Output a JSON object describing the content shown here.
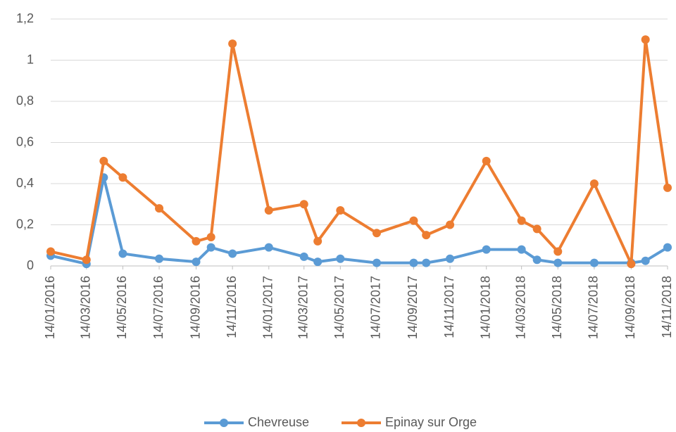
{
  "chart_data": {
    "type": "line",
    "x": [
      "2016-01-14",
      "2016-03-14",
      "2016-04-12",
      "2016-05-14",
      "2016-07-14",
      "2016-09-14",
      "2016-10-09",
      "2016-11-14",
      "2017-01-14",
      "2017-03-14",
      "2017-04-06",
      "2017-05-14",
      "2017-07-14",
      "2017-09-14",
      "2017-10-05",
      "2017-11-14",
      "2018-01-14",
      "2018-03-14",
      "2018-04-09",
      "2018-05-14",
      "2018-07-14",
      "2018-09-14",
      "2018-10-08",
      "2018-11-14"
    ],
    "series": [
      {
        "name": "Chevreuse",
        "color": "#5b9bd5",
        "values": [
          0.05,
          0.01,
          0.43,
          0.06,
          0.035,
          0.02,
          0.09,
          0.06,
          0.09,
          0.045,
          0.02,
          0.035,
          0.015,
          0.015,
          0.015,
          0.035,
          0.08,
          0.08,
          0.03,
          0.015,
          0.015,
          0.015,
          0.025,
          0.09
        ]
      },
      {
        "name": "Epinay sur Orge",
        "color": "#ed7d31",
        "values": [
          0.07,
          0.03,
          0.51,
          0.43,
          0.28,
          0.12,
          0.14,
          1.08,
          0.27,
          0.3,
          0.12,
          0.27,
          0.16,
          0.22,
          0.15,
          0.2,
          0.51,
          0.22,
          0.18,
          0.07,
          0.4,
          0.01,
          1.1,
          0.38
        ]
      }
    ],
    "xlim": [
      "2016-01-14",
      "2018-11-14"
    ],
    "xticks": [
      {
        "value": "2016-01-14",
        "label": "14/01/2016"
      },
      {
        "value": "2016-03-14",
        "label": "14/03/2016"
      },
      {
        "value": "2016-05-14",
        "label": "14/05/2016"
      },
      {
        "value": "2016-07-14",
        "label": "14/07/2016"
      },
      {
        "value": "2016-09-14",
        "label": "14/09/2016"
      },
      {
        "value": "2016-11-14",
        "label": "14/11/2016"
      },
      {
        "value": "2017-01-14",
        "label": "14/01/2017"
      },
      {
        "value": "2017-03-14",
        "label": "14/03/2017"
      },
      {
        "value": "2017-05-14",
        "label": "14/05/2017"
      },
      {
        "value": "2017-07-14",
        "label": "14/07/2017"
      },
      {
        "value": "2017-09-14",
        "label": "14/09/2017"
      },
      {
        "value": "2017-11-14",
        "label": "14/11/2017"
      },
      {
        "value": "2018-01-14",
        "label": "14/01/2018"
      },
      {
        "value": "2018-03-14",
        "label": "14/03/2018"
      },
      {
        "value": "2018-05-14",
        "label": "14/05/2018"
      },
      {
        "value": "2018-07-14",
        "label": "14/07/2018"
      },
      {
        "value": "2018-09-14",
        "label": "14/09/2018"
      },
      {
        "value": "2018-11-14",
        "label": "14/11/2018"
      }
    ],
    "ylim": [
      0,
      1.2
    ],
    "yticks": [
      0,
      {
        "value": 0.2,
        "label": "0,2"
      },
      {
        "value": 0.4,
        "label": "0,4"
      },
      {
        "value": 0.6,
        "label": "0,6"
      },
      {
        "value": 0.8,
        "label": "0,8"
      },
      1,
      {
        "value": 1.2,
        "label": "1,2"
      }
    ],
    "grid": true,
    "legend": "bottom"
  }
}
